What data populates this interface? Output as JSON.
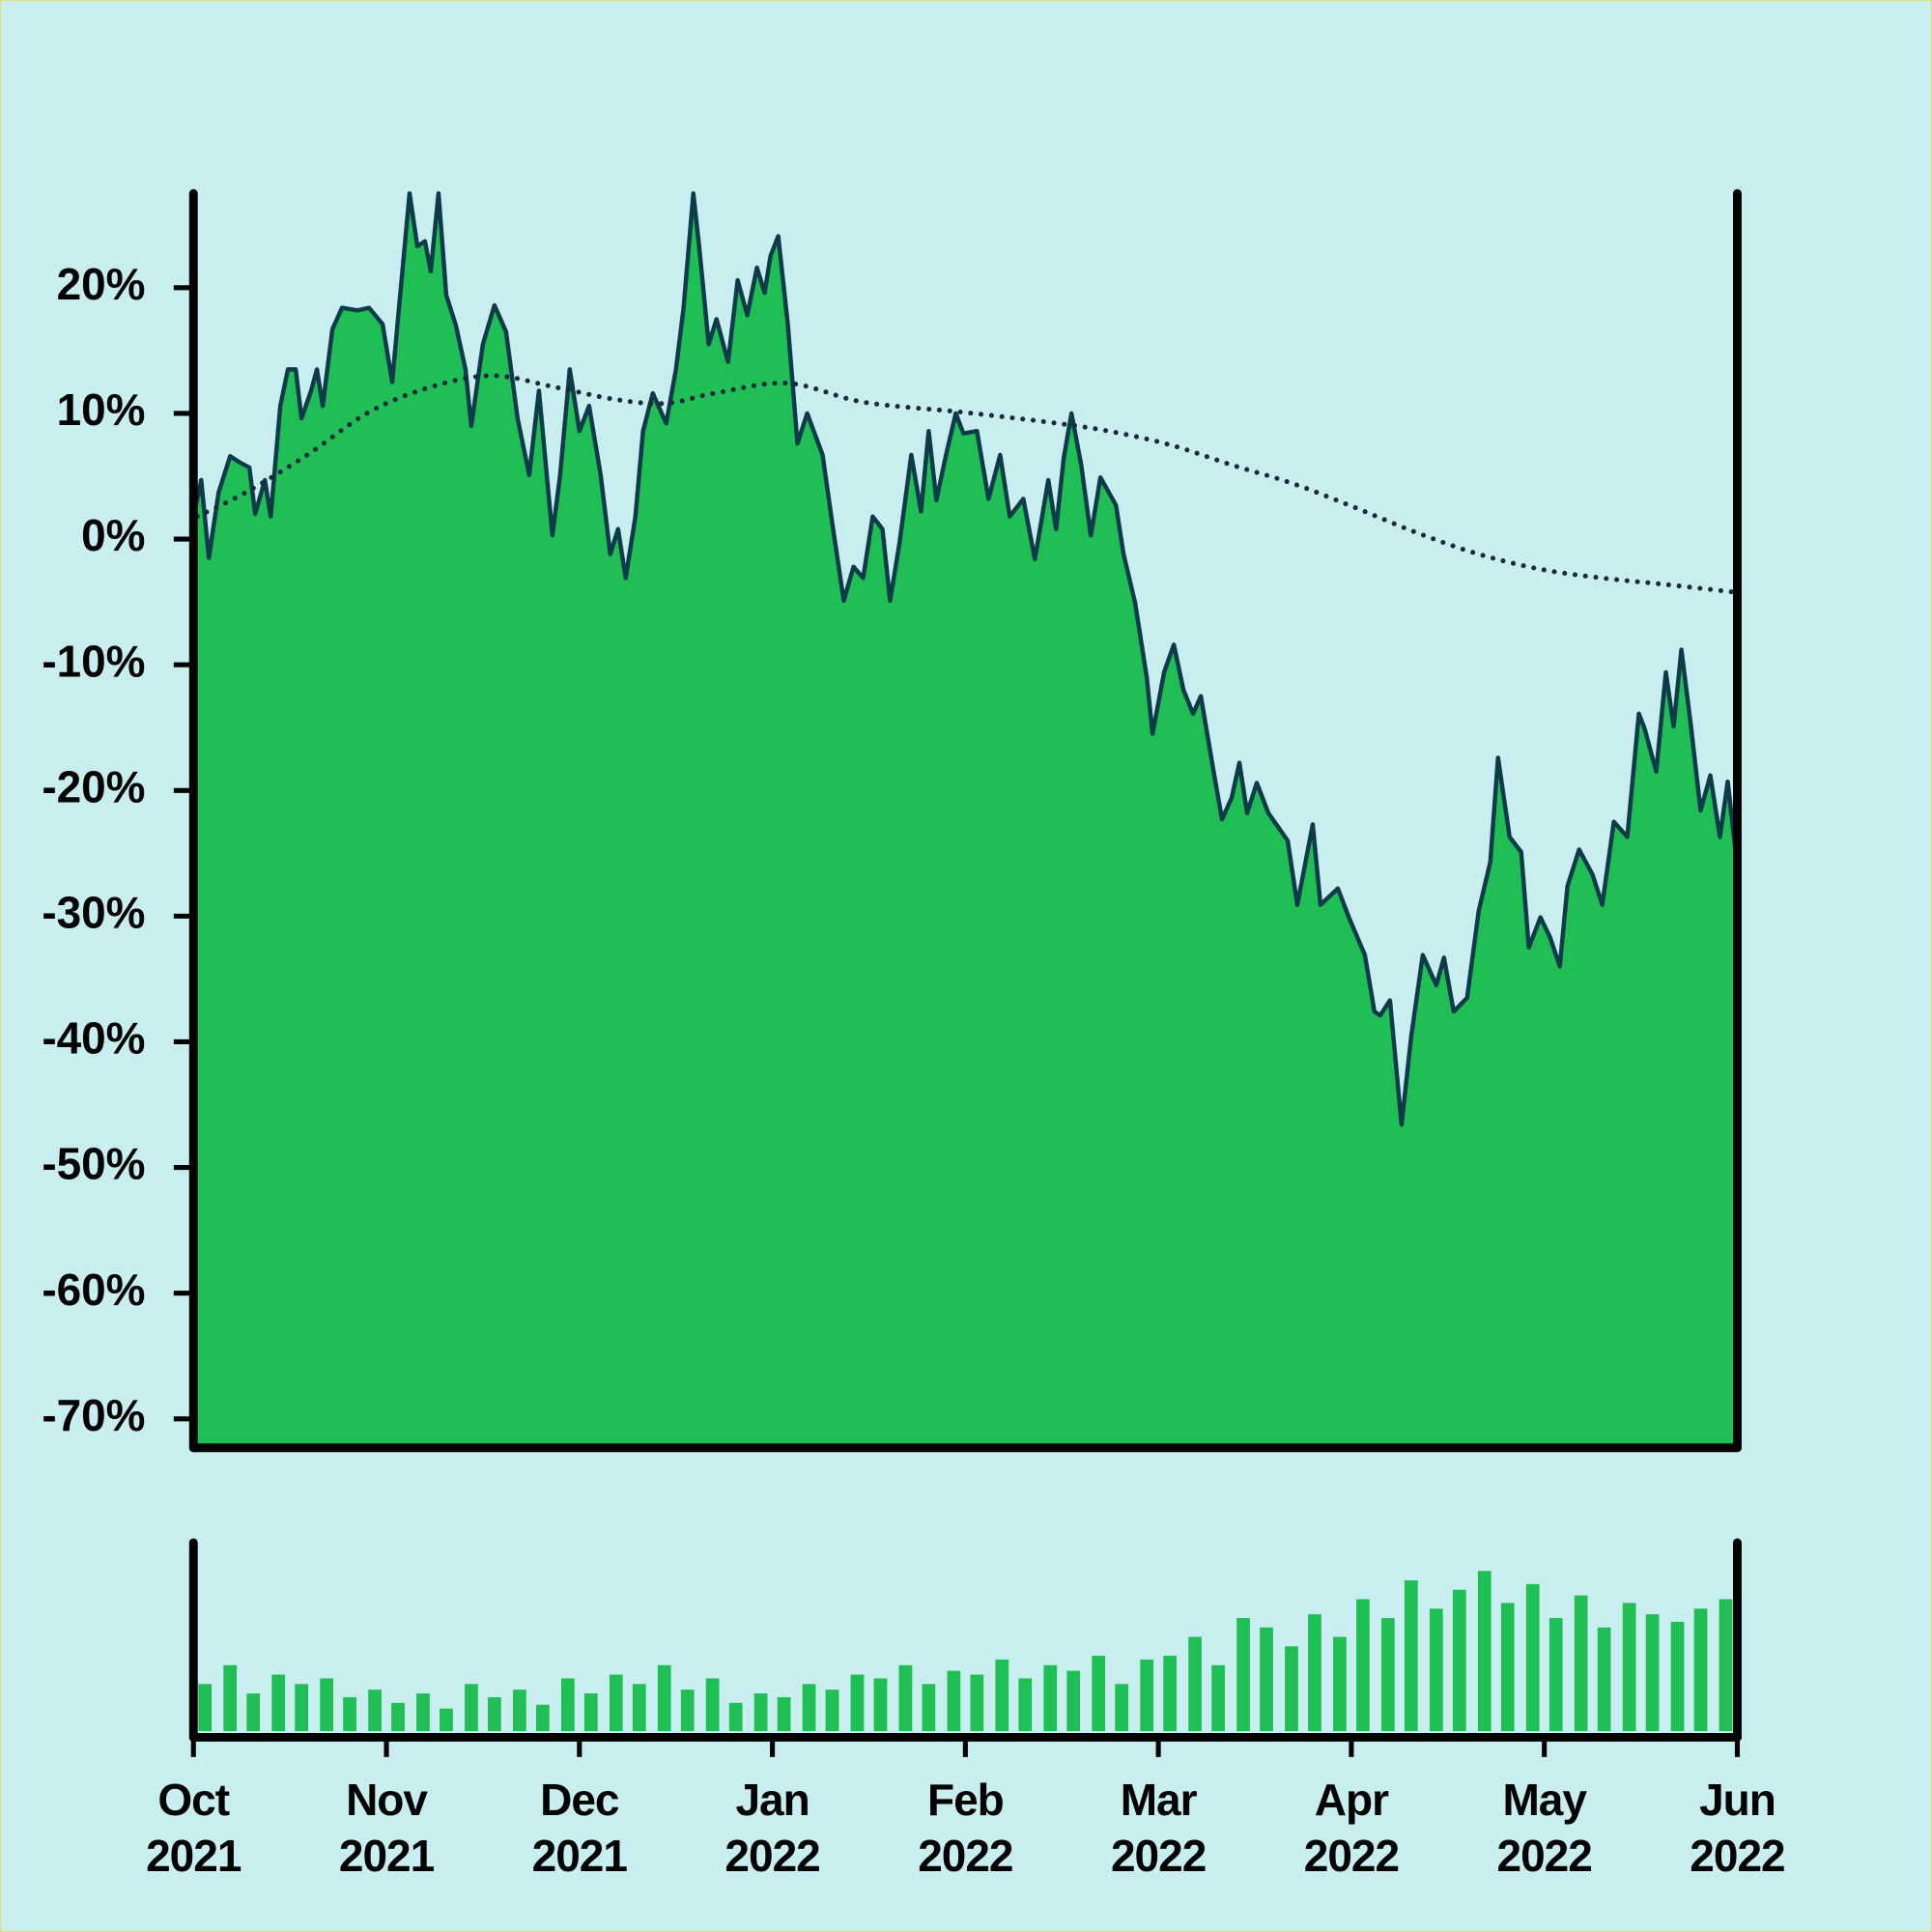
{
  "chart_data": {
    "type": "area",
    "xlim": [
      0,
      8
    ],
    "xticks": [
      {
        "value": 0,
        "label": "Oct 2021"
      },
      {
        "value": 1,
        "label": "Nov 2021"
      },
      {
        "value": 2,
        "label": "Dec 2021"
      },
      {
        "value": 3,
        "label": "Jan 2022"
      },
      {
        "value": 4,
        "label": "Feb 2022"
      },
      {
        "value": 5,
        "label": "Mar 2022"
      },
      {
        "value": 6,
        "label": "Apr 2022"
      },
      {
        "value": 7,
        "label": "May 2022"
      },
      {
        "value": 8,
        "label": "Jun 2022"
      }
    ],
    "ylim": [
      -72.3,
      27.5
    ],
    "yticks": [
      {
        "value": 20,
        "label": "20%"
      },
      {
        "value": 10,
        "label": "10%"
      },
      {
        "value": 0,
        "label": "0%"
      },
      {
        "value": -10,
        "label": "-10%"
      },
      {
        "value": -20,
        "label": "-20%"
      },
      {
        "value": -30,
        "label": "-30%"
      },
      {
        "value": -40,
        "label": "-40%"
      },
      {
        "value": -50,
        "label": "-50%"
      },
      {
        "value": -60,
        "label": "-60%"
      },
      {
        "value": -70,
        "label": "-70%"
      }
    ],
    "series": [
      {
        "color": "#1fbf55",
        "line_color": "#0d3b4a",
        "x": [
          0.0,
          0.04,
          0.08,
          0.13,
          0.19,
          0.24,
          0.29,
          0.32,
          0.37,
          0.4,
          0.45,
          0.49,
          0.53,
          0.56,
          0.61,
          0.64,
          0.67,
          0.72,
          0.77,
          0.85,
          0.91,
          0.98,
          1.03,
          1.12,
          1.16,
          1.2,
          1.23,
          1.27,
          1.31,
          1.36,
          1.41,
          1.44,
          1.5,
          1.56,
          1.62,
          1.68,
          1.74,
          1.79,
          1.86,
          1.9,
          1.95,
          2.0,
          2.05,
          2.11,
          2.16,
          2.2,
          2.24,
          2.29,
          2.33,
          2.38,
          2.45,
          2.5,
          2.54,
          2.59,
          2.62,
          2.67,
          2.71,
          2.77,
          2.82,
          2.87,
          2.92,
          2.96,
          2.99,
          3.03,
          3.08,
          3.13,
          3.18,
          3.26,
          3.31,
          3.37,
          3.42,
          3.47,
          3.52,
          3.57,
          3.61,
          3.66,
          3.72,
          3.77,
          3.81,
          3.85,
          3.9,
          3.95,
          3.99,
          4.06,
          4.12,
          4.18,
          4.23,
          4.3,
          4.36,
          4.43,
          4.47,
          4.51,
          4.55,
          4.6,
          4.65,
          4.7,
          4.78,
          4.82,
          4.88,
          4.94,
          4.97,
          5.03,
          5.08,
          5.13,
          5.18,
          5.22,
          5.29,
          5.33,
          5.38,
          5.42,
          5.46,
          5.51,
          5.57,
          5.67,
          5.72,
          5.8,
          5.84,
          5.93,
          5.99,
          6.07,
          6.12,
          6.15,
          6.2,
          6.26,
          6.31,
          6.37,
          6.44,
          6.48,
          6.53,
          6.6,
          6.66,
          6.72,
          6.76,
          6.82,
          6.88,
          6.92,
          6.98,
          7.03,
          7.08,
          7.12,
          7.18,
          7.25,
          7.3,
          7.36,
          7.43,
          7.49,
          7.52,
          7.58,
          7.63,
          7.67,
          7.71,
          7.76,
          7.81,
          7.86,
          7.91,
          7.95,
          8.0
        ],
        "values": [
          1.8,
          4.7,
          -1.5,
          3.7,
          6.6,
          6.1,
          5.7,
          2.0,
          4.7,
          1.8,
          10.6,
          13.5,
          13.5,
          9.6,
          11.8,
          13.5,
          10.6,
          16.7,
          18.4,
          18.2,
          18.4,
          17.1,
          12.5,
          27.5,
          23.3,
          23.7,
          21.3,
          27.5,
          19.4,
          17.0,
          13.5,
          9.0,
          15.5,
          18.6,
          16.5,
          9.6,
          5.1,
          11.8,
          0.3,
          5.1,
          13.5,
          8.6,
          10.6,
          5.1,
          -1.2,
          0.8,
          -3.1,
          1.8,
          8.6,
          11.6,
          9.2,
          13.5,
          18.4,
          27.5,
          23.3,
          15.5,
          17.5,
          14.1,
          20.6,
          17.8,
          21.6,
          19.6,
          22.5,
          24.1,
          17.1,
          7.6,
          10.0,
          6.7,
          1.3,
          -4.9,
          -2.2,
          -3.1,
          1.8,
          0.8,
          -4.9,
          -0.2,
          6.7,
          2.2,
          8.6,
          3.1,
          6.7,
          10.0,
          8.4,
          8.6,
          3.2,
          6.7,
          1.8,
          3.2,
          -1.6,
          4.7,
          0.8,
          6.5,
          10.0,
          5.9,
          0.3,
          4.9,
          2.7,
          -1.2,
          -5.1,
          -11.0,
          -15.5,
          -10.6,
          -8.4,
          -12.0,
          -13.9,
          -12.5,
          -18.8,
          -22.3,
          -20.6,
          -17.8,
          -21.8,
          -19.4,
          -21.8,
          -24.0,
          -29.1,
          -22.7,
          -29.1,
          -27.8,
          -30.2,
          -33.1,
          -37.6,
          -37.9,
          -36.7,
          -46.6,
          -39.6,
          -33.1,
          -35.5,
          -33.3,
          -37.6,
          -36.5,
          -29.6,
          -25.7,
          -17.4,
          -23.7,
          -24.9,
          -32.5,
          -30.1,
          -31.7,
          -34.0,
          -27.6,
          -24.7,
          -26.7,
          -29.1,
          -22.5,
          -23.7,
          -13.9,
          -15.1,
          -18.5,
          -10.6,
          -14.9,
          -8.8,
          -14.9,
          -21.6,
          -18.8,
          -23.7,
          -19.3,
          -26.1
        ]
      },
      {
        "type": "dotted-line",
        "color": "#1a2a3a",
        "x": [
          0.02,
          0.27,
          0.59,
          0.91,
          1.23,
          1.55,
          1.87,
          2.19,
          2.45,
          2.7,
          3.08,
          3.47,
          3.98,
          4.43,
          4.74,
          5.06,
          5.38,
          5.7,
          6.02,
          6.34,
          6.66,
          6.98,
          7.3,
          7.62,
          7.97
        ],
        "values": [
          1.8,
          3.7,
          6.7,
          10.1,
          12.1,
          13.0,
          12.1,
          11.1,
          10.8,
          11.6,
          12.4,
          10.9,
          10.1,
          9.3,
          8.6,
          7.5,
          5.9,
          4.4,
          2.5,
          0.5,
          -1.2,
          -2.4,
          -3.1,
          -3.6,
          -4.2
        ]
      }
    ],
    "volume": {
      "type": "bar",
      "color": "#1fbf55",
      "ylim": [
        0,
        100
      ],
      "x": [
        0.06,
        0.19,
        0.31,
        0.44,
        0.56,
        0.69,
        0.81,
        0.94,
        1.06,
        1.19,
        1.31,
        1.44,
        1.56,
        1.69,
        1.81,
        1.94,
        2.06,
        2.19,
        2.31,
        2.44,
        2.56,
        2.69,
        2.81,
        2.94,
        3.06,
        3.19,
        3.31,
        3.44,
        3.56,
        3.69,
        3.81,
        3.94,
        4.06,
        4.19,
        4.31,
        4.44,
        4.56,
        4.69,
        4.81,
        4.94,
        5.06,
        5.19,
        5.31,
        5.44,
        5.56,
        5.69,
        5.81,
        5.94,
        6.06,
        6.19,
        6.31,
        6.44,
        6.56,
        6.69,
        6.81,
        6.94,
        7.06,
        7.19,
        7.31,
        7.44,
        7.56,
        7.69,
        7.81,
        7.94
      ],
      "values": [
        25,
        35,
        20,
        30,
        25,
        28,
        18,
        22,
        15,
        20,
        12,
        25,
        18,
        22,
        14,
        28,
        20,
        30,
        25,
        35,
        22,
        28,
        15,
        20,
        18,
        25,
        22,
        30,
        28,
        35,
        25,
        32,
        30,
        38,
        28,
        35,
        32,
        40,
        25,
        38,
        40,
        50,
        35,
        60,
        55,
        45,
        62,
        50,
        70,
        60,
        80,
        65,
        75,
        85,
        68,
        78,
        60,
        72,
        55,
        68,
        62,
        58,
        65,
        70
      ]
    }
  }
}
